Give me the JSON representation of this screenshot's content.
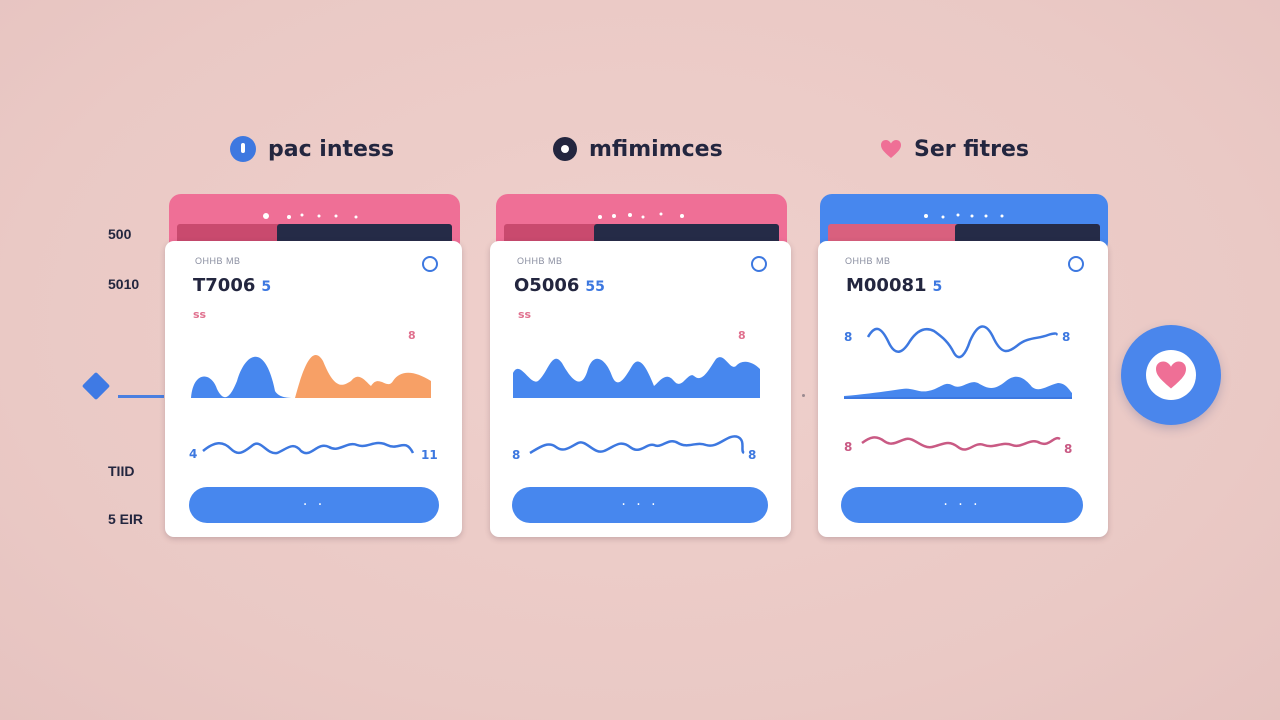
{
  "columns": [
    {
      "title": "pac intess",
      "icon": "blue-dot-icon"
    },
    {
      "title": "mfimimces",
      "icon": "dark-dot-icon"
    },
    {
      "title": "Ser fitres",
      "icon": "heart-icon"
    }
  ],
  "side_labels": [
    "500",
    "5010",
    "TIID",
    "5 EIR"
  ],
  "cards": [
    {
      "small_label": "OHHB MB",
      "value": "T7006",
      "unit": "5",
      "pink": "ss",
      "mini_right": "8",
      "row_left": "4",
      "row_right": "11",
      "button_label": "· ·"
    },
    {
      "small_label": "OHHB MB",
      "value": "O5006",
      "unit": "55",
      "pink": "ss",
      "mini_right": "8",
      "row_left": "8",
      "row_right": "8",
      "button_label": "· · ·"
    },
    {
      "small_label": "OHHB MB",
      "value": "M00081",
      "unit": "5",
      "pink": "",
      "mini_left": "8",
      "mini_right": "8",
      "row_left": "8",
      "row_right": "8",
      "button_label": "· · ·"
    }
  ],
  "colors": {
    "pink": "#ef6f96",
    "blue": "#4787ee",
    "navy": "#252b47",
    "orange": "#f7a066",
    "background": "#ecccc8"
  },
  "icons": {
    "left_marker": "diamond-icon",
    "fab": "heart-icon"
  }
}
